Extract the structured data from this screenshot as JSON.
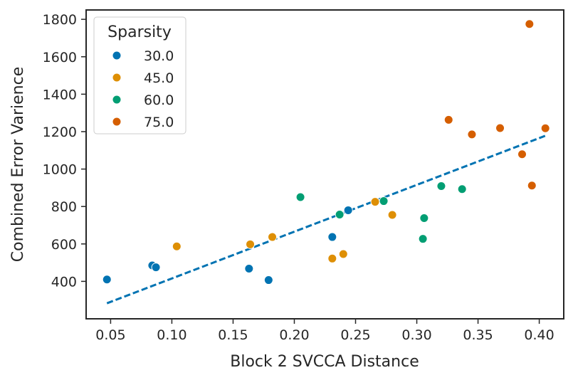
{
  "chart_data": {
    "type": "scatter",
    "title": "",
    "xlabel": "Block 2 SVCCA Distance",
    "ylabel": "Combined Error Varience",
    "xlim": [
      0.03,
      0.42
    ],
    "ylim": [
      200,
      1850
    ],
    "xticks": [
      0.05,
      0.1,
      0.15,
      0.2,
      0.25,
      0.3,
      0.35,
      0.4
    ],
    "xtick_labels": [
      "0.05",
      "0.10",
      "0.15",
      "0.20",
      "0.25",
      "0.30",
      "0.35",
      "0.40"
    ],
    "yticks": [
      400,
      600,
      800,
      1000,
      1200,
      1400,
      1600,
      1800
    ],
    "ytick_labels": [
      "400",
      "600",
      "800",
      "1000",
      "1200",
      "1400",
      "1600",
      "1800"
    ],
    "grid": false,
    "legend": {
      "title": "Sparsity",
      "position": "top-left"
    },
    "series": [
      {
        "name": "30.0",
        "color": "#0173b2",
        "points": [
          [
            0.047,
            410
          ],
          [
            0.084,
            485
          ],
          [
            0.087,
            475
          ],
          [
            0.163,
            468
          ],
          [
            0.179,
            407
          ],
          [
            0.231,
            637
          ],
          [
            0.244,
            780
          ]
        ]
      },
      {
        "name": "45.0",
        "color": "#de8f05",
        "points": [
          [
            0.104,
            587
          ],
          [
            0.164,
            598
          ],
          [
            0.182,
            637
          ],
          [
            0.231,
            522
          ],
          [
            0.24,
            546
          ],
          [
            0.266,
            825
          ],
          [
            0.28,
            755
          ]
        ]
      },
      {
        "name": "60.0",
        "color": "#029e73",
        "points": [
          [
            0.205,
            850
          ],
          [
            0.237,
            757
          ],
          [
            0.273,
            829
          ],
          [
            0.305,
            627
          ],
          [
            0.306,
            738
          ],
          [
            0.32,
            909
          ],
          [
            0.337,
            893
          ]
        ]
      },
      {
        "name": "75.0",
        "color": "#d55e00",
        "points": [
          [
            0.326,
            1263
          ],
          [
            0.345,
            1185
          ],
          [
            0.368,
            1219
          ],
          [
            0.386,
            1079
          ],
          [
            0.392,
            1775
          ],
          [
            0.394,
            912
          ],
          [
            0.405,
            1218
          ]
        ]
      }
    ],
    "trendline": {
      "style": "dashed",
      "color": "#0173b2",
      "x": [
        0.047,
        0.405
      ],
      "y": [
        283,
        1178
      ]
    }
  }
}
